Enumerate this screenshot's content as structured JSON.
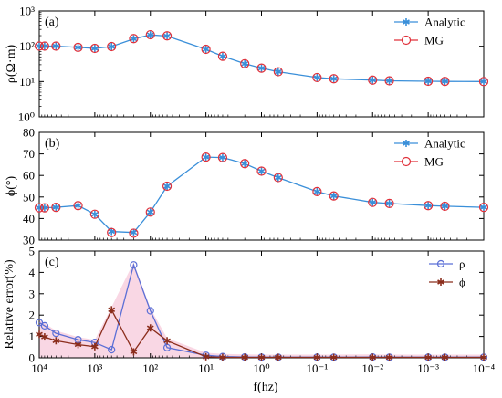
{
  "figure": {
    "xlabel": "f(hz)",
    "colors": {
      "analytic": "#3a8fd9",
      "mg": "#e0303a",
      "rho": "#5b6fd6",
      "phi": "#8b2d1c",
      "error_fill": "#f6c6d8"
    }
  },
  "chart_data": [
    {
      "type": "line",
      "panel_label": "(a)",
      "ylabel": "ρ(Ω·m)",
      "yscale": "log",
      "xscale": "log-reversed",
      "xlim": [
        10000,
        0.0001
      ],
      "ylim": [
        1,
        1000
      ],
      "grid": false,
      "legend_position": "top-right",
      "x_ticks": [
        "10⁴",
        "10³",
        "10²",
        "10¹",
        "10⁰",
        "10⁻¹",
        "10⁻²",
        "10⁻³",
        "10⁻⁴"
      ],
      "y_ticks": [
        "10⁰",
        "10¹",
        "10²",
        "10³"
      ],
      "x": [
        10000,
        8000,
        5000,
        2000,
        1000,
        500,
        200,
        100,
        50,
        10,
        5,
        2,
        1,
        0.5,
        0.1,
        0.05,
        0.01,
        0.005,
        0.001,
        0.0005,
        0.0001
      ],
      "series": [
        {
          "name": "Analytic",
          "values": [
            101,
            101,
            101,
            93,
            87,
            98,
            162,
            210,
            195,
            82,
            52,
            32,
            24,
            19,
            13,
            12,
            11,
            10.5,
            10.2,
            10.1,
            10
          ]
        },
        {
          "name": "MG",
          "values": [
            101,
            101,
            101,
            93,
            87,
            98,
            165,
            212,
            197,
            82,
            52,
            32,
            24,
            19,
            13,
            12,
            11,
            10.5,
            10.2,
            10.1,
            10
          ]
        }
      ]
    },
    {
      "type": "line",
      "panel_label": "(b)",
      "ylabel": "ϕ(°)",
      "yscale": "linear",
      "xscale": "log-reversed",
      "xlim": [
        10000,
        0.0001
      ],
      "ylim": [
        30,
        80
      ],
      "grid": false,
      "legend_position": "top-right",
      "x_ticks": [
        "10⁴",
        "10³",
        "10²",
        "10¹",
        "10⁰",
        "10⁻¹",
        "10⁻²",
        "10⁻³",
        "10⁻⁴"
      ],
      "y_ticks": [
        "30",
        "40",
        "50",
        "60",
        "70",
        "80"
      ],
      "x": [
        10000,
        8000,
        5000,
        2000,
        1000,
        500,
        200,
        100,
        50,
        10,
        5,
        2,
        1,
        0.5,
        0.1,
        0.05,
        0.01,
        0.005,
        0.001,
        0.0005,
        0.0001
      ],
      "series": [
        {
          "name": "Analytic",
          "values": [
            45,
            45,
            45.2,
            46,
            42,
            34,
            33.5,
            43,
            55,
            68.5,
            68.3,
            65.5,
            62,
            59,
            52.5,
            50.5,
            47.5,
            47,
            46,
            45.7,
            45.2
          ]
        },
        {
          "name": "MG",
          "values": [
            45,
            45,
            45.2,
            46,
            42,
            33.5,
            33.2,
            43,
            55,
            68.5,
            68.3,
            65.5,
            62,
            59,
            52.5,
            50.5,
            47.5,
            47,
            46,
            45.7,
            45.2
          ]
        }
      ]
    },
    {
      "type": "line",
      "panel_label": "(c)",
      "ylabel": "Relative error(%)",
      "yscale": "linear",
      "xscale": "log-reversed",
      "xlim": [
        10000,
        0.0001
      ],
      "ylim": [
        0,
        5
      ],
      "grid": false,
      "legend_position": "top-right",
      "x_ticks": [
        "10⁴",
        "10³",
        "10²",
        "10¹",
        "10⁰",
        "10⁻¹",
        "10⁻²",
        "10⁻³",
        "10⁻⁴"
      ],
      "y_ticks": [
        "0",
        "1",
        "2",
        "3",
        "4",
        "5"
      ],
      "x": [
        10000,
        8000,
        5000,
        2000,
        1000,
        500,
        200,
        100,
        50,
        10,
        5,
        2,
        1,
        0.5,
        0.1,
        0.05,
        0.01,
        0.005,
        0.001,
        0.0005,
        0.0001
      ],
      "series": [
        {
          "name": "ρ",
          "values": [
            1.65,
            1.5,
            1.15,
            0.85,
            0.72,
            0.38,
            4.35,
            2.2,
            0.48,
            0.12,
            0.06,
            0.04,
            0.03,
            0.03,
            0.03,
            0.03,
            0.04,
            0.03,
            0.03,
            0.03,
            0.03
          ]
        },
        {
          "name": "ϕ",
          "values": [
            1.1,
            0.98,
            0.8,
            0.62,
            0.52,
            2.25,
            0.28,
            1.4,
            0.8,
            0.05,
            0.02,
            0.02,
            0.02,
            0.02,
            0.02,
            0.02,
            0.02,
            0.02,
            0.02,
            0.02,
            0.02
          ]
        }
      ]
    }
  ]
}
